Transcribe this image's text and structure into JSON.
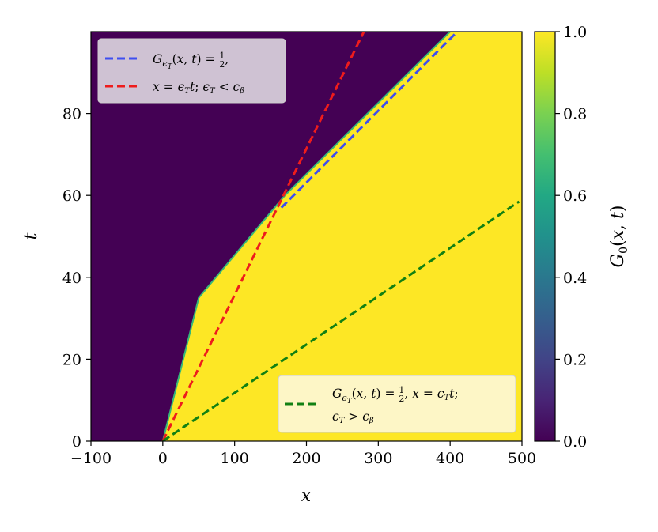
{
  "chart_data": {
    "type": "heatmap",
    "title": "",
    "xlabel": "x",
    "ylabel": "t",
    "xlim": [
      -100,
      500
    ],
    "ylim": [
      0,
      100
    ],
    "xticks": [
      "−100",
      "0",
      "100",
      "200",
      "300",
      "400",
      "500"
    ],
    "xtick_values": [
      -100,
      0,
      100,
      200,
      300,
      400,
      500
    ],
    "yticks": [
      "0",
      "20",
      "40",
      "60",
      "80"
    ],
    "ytick_values": [
      0,
      20,
      40,
      60,
      80
    ],
    "colormap": "viridis",
    "low_color": "#440154",
    "high_color": "#fde725",
    "colorbar": {
      "label": "G0(x, t)",
      "range": [
        0,
        1
      ],
      "ticks": [
        "0.0",
        "0.2",
        "0.4",
        "0.6",
        "0.8",
        "1.0"
      ],
      "tick_values": [
        0,
        0.2,
        0.4,
        0.6,
        0.8,
        1.0
      ]
    },
    "front_boundary": {
      "x": [
        0,
        50,
        170,
        400
      ],
      "t": [
        0,
        35,
        60,
        100
      ]
    },
    "series": [
      {
        "name": "G_εT(x,t) = 1/2,",
        "style": "dashed",
        "color": "#3e4ef0",
        "x": [
          165,
          410
        ],
        "t": [
          57,
          100
        ]
      },
      {
        "name": "x = εT t; εT < cβ",
        "style": "dashed",
        "color": "#ee1c1c",
        "x": [
          0,
          280
        ],
        "t": [
          0,
          100
        ]
      },
      {
        "name": "G_εT(x,t) = 1/2, x = εT t; εT > cβ",
        "style": "dashed",
        "color": "#128012",
        "x": [
          0,
          496
        ],
        "t": [
          0,
          58.5
        ]
      }
    ],
    "legends": [
      {
        "placement": "top-left",
        "entries": [
          "G_εT(x,t) = 1/2,",
          "x = εT t; εT < cβ"
        ],
        "colors": [
          "#3e4ef0",
          "#ee1c1c"
        ]
      },
      {
        "placement": "bottom-right",
        "entries": [
          "G_εT(x,t) = 1/2, x = εT t;",
          "εT > cβ"
        ],
        "colors": [
          "#128012"
        ]
      }
    ]
  }
}
